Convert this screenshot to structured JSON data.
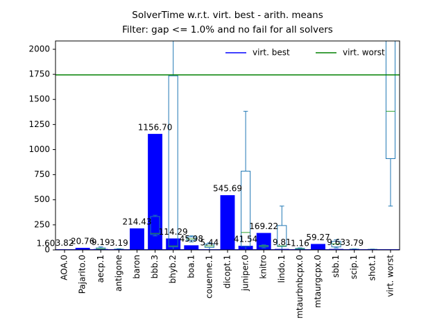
{
  "chart_data": {
    "type": "bar",
    "title": "SolverTime w.r.t. virt. best - arith. means",
    "subtitle": "Filter: gap <= 1.0% and no fail for all solvers",
    "categories": [
      "AOA.0",
      "Pajarito.0",
      "aecp.1",
      "antigone",
      "baron",
      "bbb.3",
      "bhyb.2",
      "boa.1",
      "couenne.1",
      "dicopt.1",
      "juniper.0",
      "knitro",
      "lindo.1",
      "mtaurbnbcpx.0",
      "mtaurgcpx.0",
      "sbb.1",
      "scip.1",
      "shot.1",
      "virt. worst"
    ],
    "values": [
      3.82,
      20.76,
      9.19,
      3.19,
      214.43,
      1156.7,
      114.29,
      45.98,
      5.44,
      545.69,
      41.54,
      169.22,
      9.81,
      1.16,
      59.27,
      9.63,
      3.79,
      3,
      null
    ],
    "value_labels": [
      "3.82",
      "20.76",
      "9.19",
      "3.19",
      "214.43",
      "1156.70",
      "114.29",
      "45.98",
      "5.44",
      "545.69",
      "41.54",
      "169.22",
      "9.81",
      "1.16",
      "59.27",
      "9.63",
      "3.79",
      null,
      null
    ],
    "color": "#0000ff",
    "boxes": [
      null,
      null,
      {
        "min": 0,
        "q1": 5,
        "median": 10,
        "q3": 20,
        "max": 30
      },
      {
        "min": 0,
        "q1": 2,
        "median": 4,
        "q3": 8,
        "max": 12
      },
      null,
      {
        "min": 140,
        "q1": 153,
        "median": 165,
        "q3": 333,
        "max": 345
      },
      {
        "min": 0,
        "q1": 30,
        "median": 40,
        "q3": 1736,
        "max": 2300
      },
      {
        "min": 80,
        "q1": 95,
        "median": 110,
        "q3": 130,
        "max": 140
      },
      {
        "min": 0,
        "q1": 25,
        "median": 40,
        "q3": 60,
        "max": 70
      },
      null,
      {
        "min": 0,
        "q1": 35,
        "median": 174,
        "q3": 785,
        "max": 1382
      },
      {
        "min": 20,
        "q1": 30,
        "median": 40,
        "q3": 45,
        "max": 50
      },
      {
        "min": 0,
        "q1": 35,
        "median": 40,
        "q3": 243,
        "max": 437
      },
      {
        "min": 0,
        "q1": 3,
        "median": 8,
        "q3": 15,
        "max": 20
      },
      null,
      {
        "min": 20,
        "q1": 30,
        "median": 60,
        "q3": 85,
        "max": 100
      },
      {
        "min": 0,
        "q1": 2,
        "median": 4,
        "q3": 8,
        "max": 10
      },
      {
        "min": 0,
        "q1": 2,
        "median": 4,
        "q3": 6,
        "max": 8
      },
      {
        "min": 437,
        "q1": 910,
        "median": 1382,
        "q3": 2300,
        "max": 2500
      }
    ],
    "box_color": "#1f77b4",
    "median_color": "#2ca02c",
    "lines": [
      {
        "name": "virt. best",
        "color": "#0000ff",
        "value": 1.6,
        "value_label": "1.60"
      },
      {
        "name": "virt. worst",
        "color": "#008000",
        "value": 1745
      }
    ],
    "ylim": [
      0,
      2083
    ],
    "yticks": [
      0,
      250,
      500,
      750,
      1000,
      1250,
      1500,
      1750,
      2000
    ],
    "legend": "upper right"
  }
}
